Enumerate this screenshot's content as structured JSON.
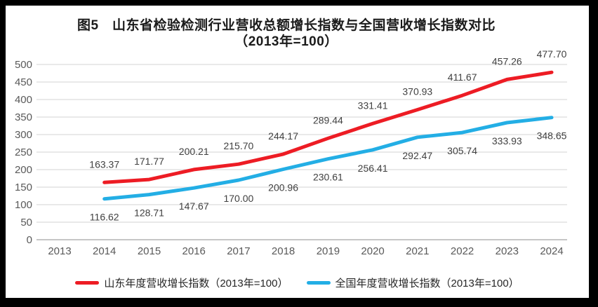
{
  "chart_data": {
    "type": "line",
    "title": "图5　山东省检验检测行业营收总额增长指数与全国营收增长指数对比",
    "subtitle": "（2013年=100）",
    "categories": [
      "2013",
      "2014",
      "2015",
      "2016",
      "2017",
      "2018",
      "2019",
      "2020",
      "2021",
      "2022",
      "2023",
      "2024"
    ],
    "ylim": [
      0,
      500
    ],
    "ytick_step": 50,
    "yticks": [
      0,
      50,
      100,
      150,
      200,
      250,
      300,
      350,
      400,
      450,
      500
    ],
    "grid": true,
    "legend_position": "bottom",
    "data_labels": true,
    "series": [
      {
        "name": "山东年度营收增长指数（2013年=100）",
        "color": "#ed1c24",
        "label_side": "above",
        "values": [
          null,
          163.37,
          171.77,
          200.21,
          215.7,
          244.17,
          289.44,
          331.41,
          370.93,
          411.67,
          457.26,
          477.7
        ]
      },
      {
        "name": "全国年度营收增长指数（2013年=100）",
        "color": "#23aee5",
        "label_side": "below",
        "values": [
          null,
          116.62,
          128.71,
          147.67,
          170.0,
          200.96,
          230.61,
          256.41,
          292.47,
          305.74,
          333.93,
          348.65
        ]
      }
    ],
    "colors": {
      "frame": "#000000",
      "background": "#ffffff",
      "gridline": "#dcdcdc",
      "axis_line": "#b3b3b3",
      "tick_label": "#595959",
      "data_label": "#404040",
      "title": "#1a1a1a",
      "legend_text": "#262626"
    }
  }
}
